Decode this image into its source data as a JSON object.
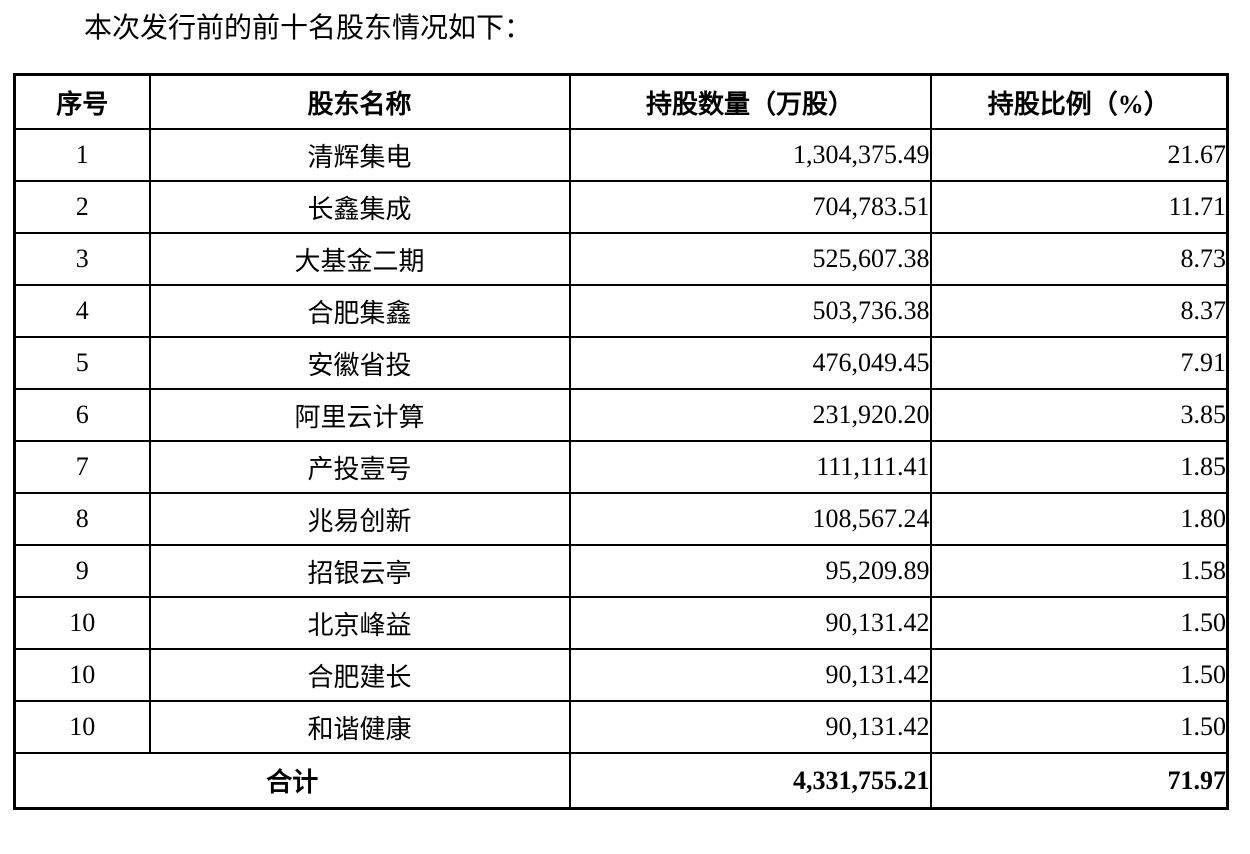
{
  "document": {
    "intro_text": "本次发行前的前十名股东情况如下："
  },
  "table": {
    "headers": {
      "no": "序号",
      "name": "股东名称",
      "shares": "持股数量（万股）",
      "ratio": "持股比例（%）"
    },
    "rows": [
      {
        "no": "1",
        "name": "清辉集电",
        "shares": "1,304,375.49",
        "ratio": "21.67"
      },
      {
        "no": "2",
        "name": "长鑫集成",
        "shares": "704,783.51",
        "ratio": "11.71"
      },
      {
        "no": "3",
        "name": "大基金二期",
        "shares": "525,607.38",
        "ratio": "8.73"
      },
      {
        "no": "4",
        "name": "合肥集鑫",
        "shares": "503,736.38",
        "ratio": "8.37"
      },
      {
        "no": "5",
        "name": "安徽省投",
        "shares": "476,049.45",
        "ratio": "7.91"
      },
      {
        "no": "6",
        "name": "阿里云计算",
        "shares": "231,920.20",
        "ratio": "3.85"
      },
      {
        "no": "7",
        "name": "产投壹号",
        "shares": "111,111.41",
        "ratio": "1.85"
      },
      {
        "no": "8",
        "name": "兆易创新",
        "shares": "108,567.24",
        "ratio": "1.80"
      },
      {
        "no": "9",
        "name": "招银云亭",
        "shares": "95,209.89",
        "ratio": "1.58"
      },
      {
        "no": "10",
        "name": "北京峰益",
        "shares": "90,131.42",
        "ratio": "1.50"
      },
      {
        "no": "10",
        "name": "合肥建长",
        "shares": "90,131.42",
        "ratio": "1.50"
      },
      {
        "no": "10",
        "name": "和谐健康",
        "shares": "90,131.42",
        "ratio": "1.50"
      }
    ],
    "total": {
      "label": "合计",
      "shares": "4,331,755.21",
      "ratio": "71.97"
    }
  },
  "colors": {
    "text": "#000000",
    "background": "#ffffff",
    "border": "#000000"
  }
}
